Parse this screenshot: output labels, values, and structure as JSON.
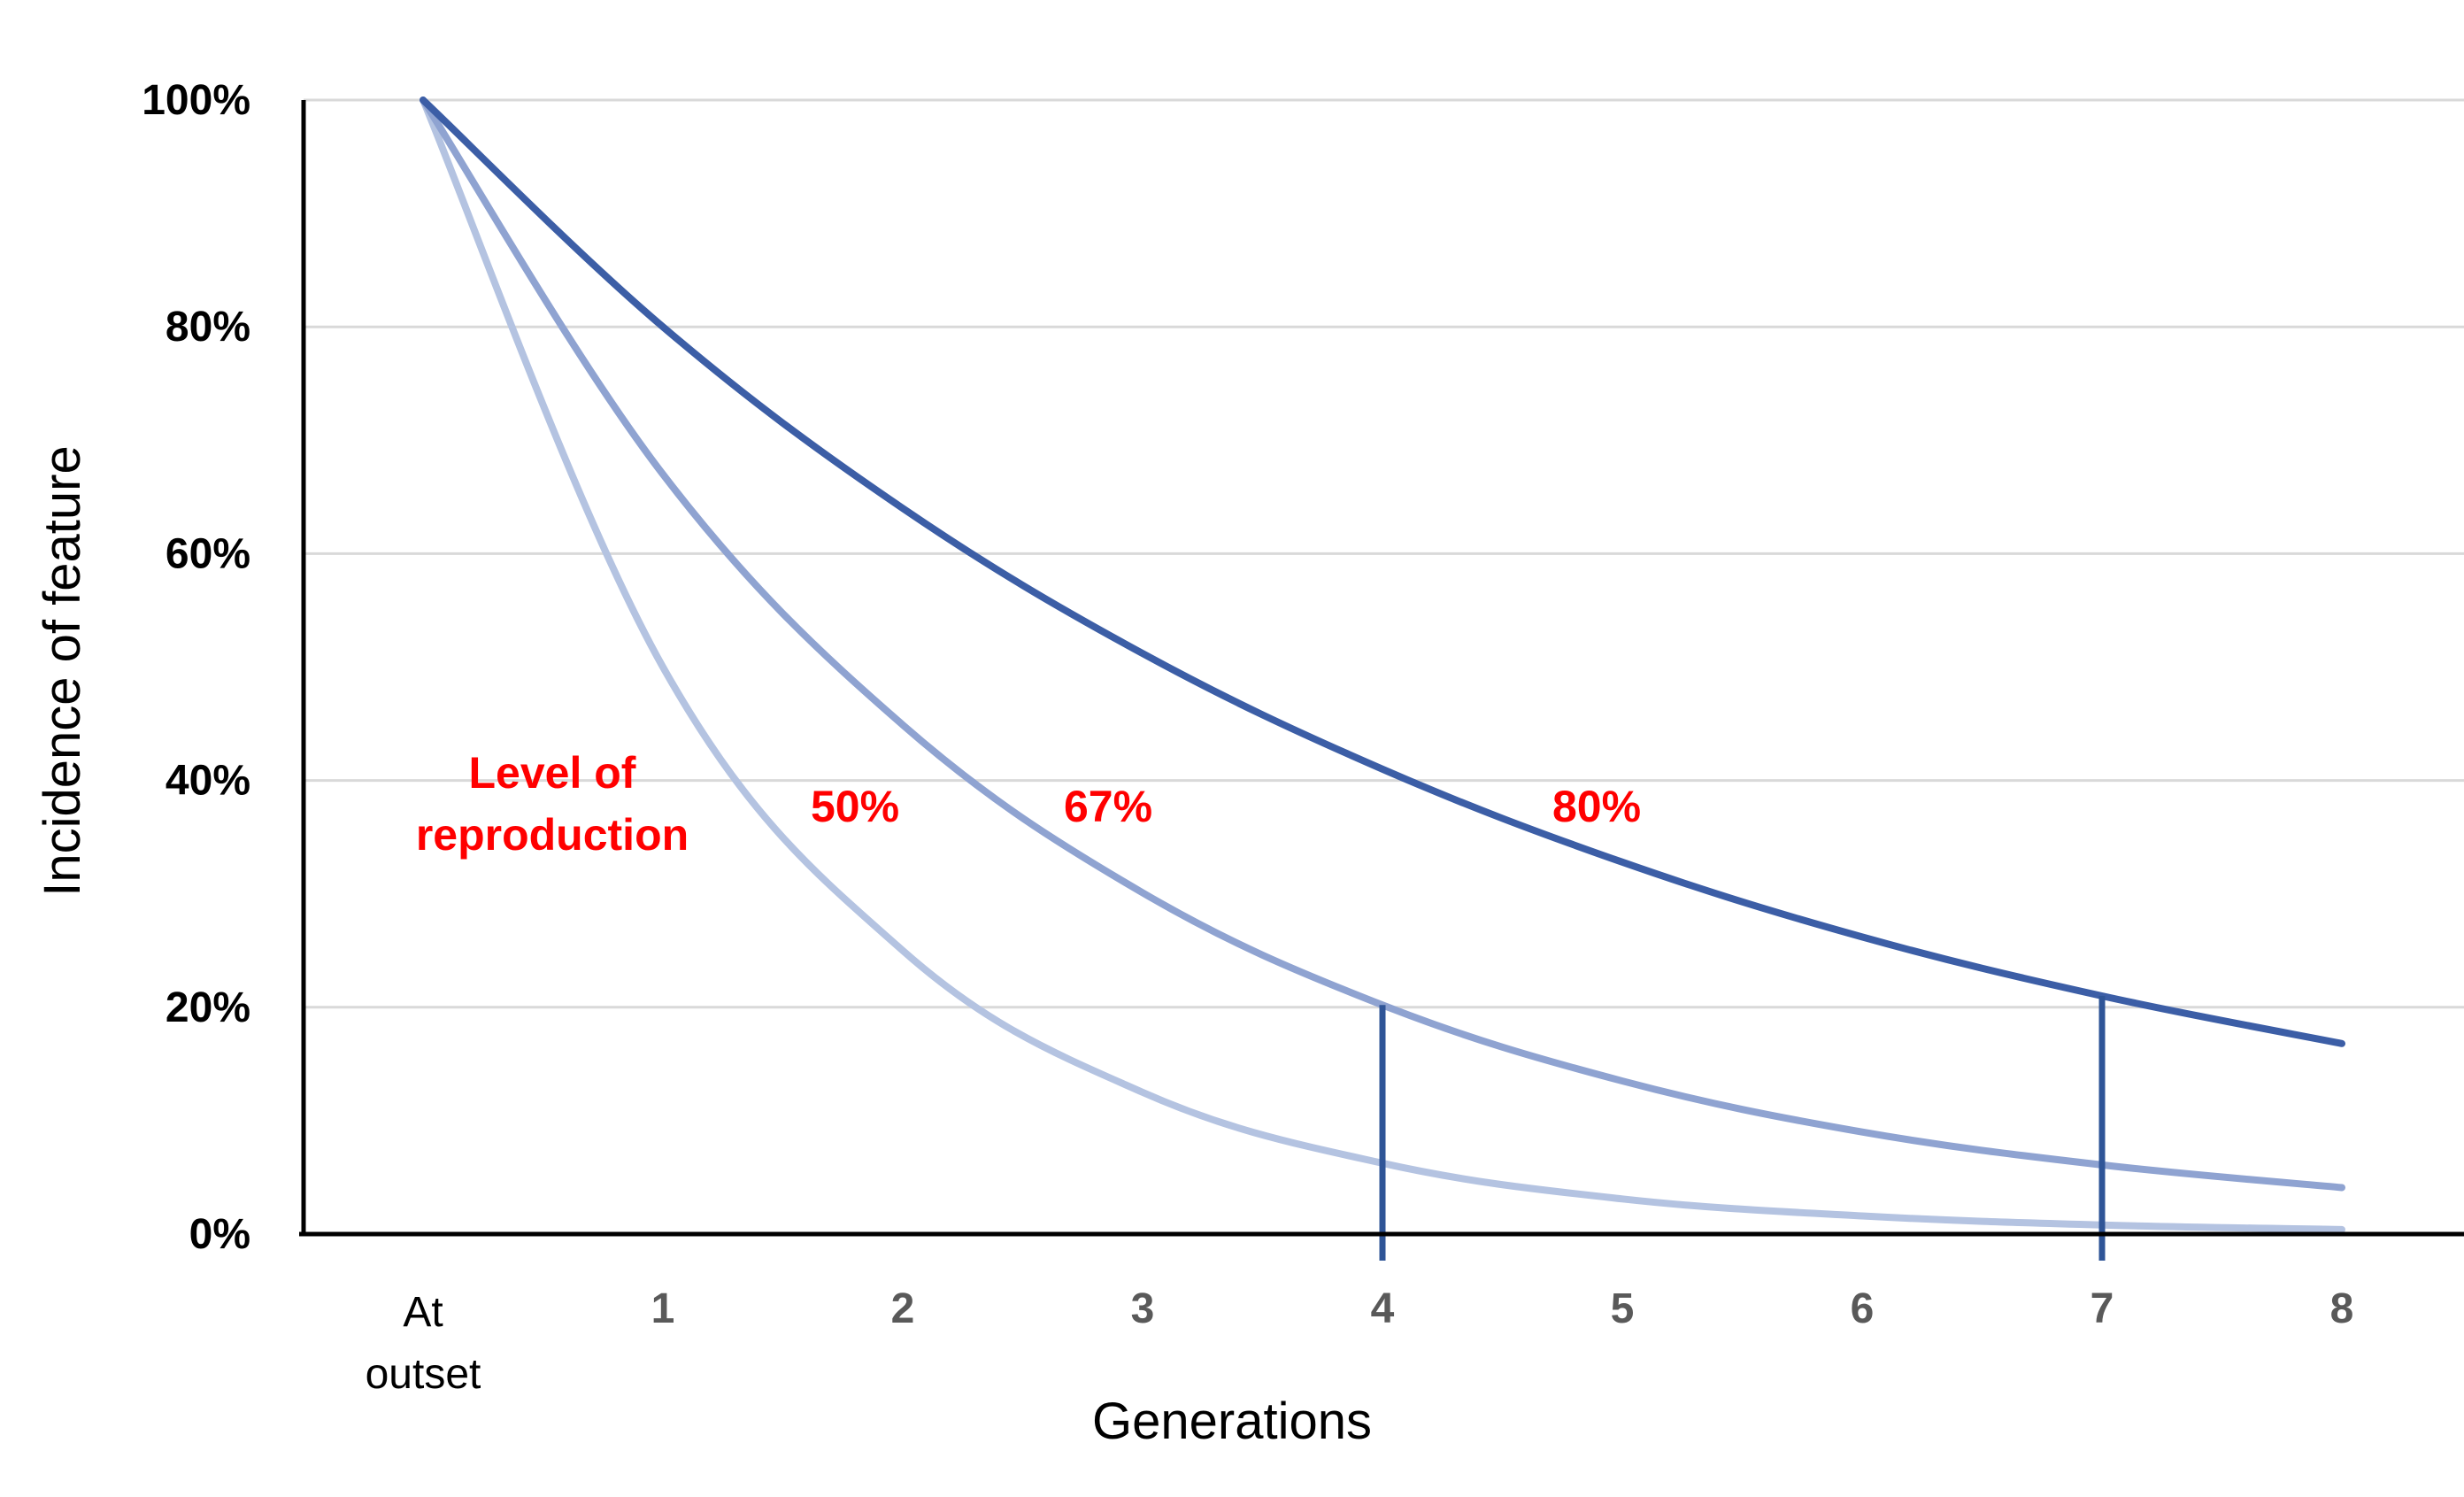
{
  "chart_data": {
    "type": "line",
    "xlabel": "Generations",
    "ylabel": "Incidence of feature",
    "categories": [
      "At outset",
      "1",
      "2",
      "3",
      "4",
      "5",
      "6",
      "7",
      "8"
    ],
    "ylim": [
      0,
      100
    ],
    "y_ticks": [
      "0%",
      "20%",
      "40%",
      "60%",
      "80%",
      "100%"
    ],
    "y_tick_values": [
      0,
      20,
      40,
      60,
      80,
      100
    ],
    "grid": true,
    "series": [
      {
        "name": "50%",
        "color": "#b4c3e1",
        "values": [
          100,
          50,
          25,
          12.5,
          6.25,
          3.1,
          1.6,
          0.8,
          0.4
        ]
      },
      {
        "name": "67%",
        "color": "#8fa3d1",
        "values": [
          100,
          67,
          44.9,
          30.1,
          20.2,
          13.5,
          9.0,
          6.1,
          4.1
        ]
      },
      {
        "name": "80%",
        "color": "#3c5ea6",
        "values": [
          100,
          80,
          64,
          51.2,
          41.0,
          32.8,
          26.2,
          21.0,
          16.8
        ]
      }
    ],
    "markers": [
      {
        "category": "4",
        "value": 20.2,
        "color": "#2f5597"
      },
      {
        "category": "7",
        "value": 21.0,
        "color": "#2f5597"
      }
    ],
    "annotations": {
      "legend_title_line1": "Level of",
      "legend_title_line2": "reproduction",
      "label_50": "50%",
      "label_67": "67%",
      "label_80": "80%"
    }
  }
}
